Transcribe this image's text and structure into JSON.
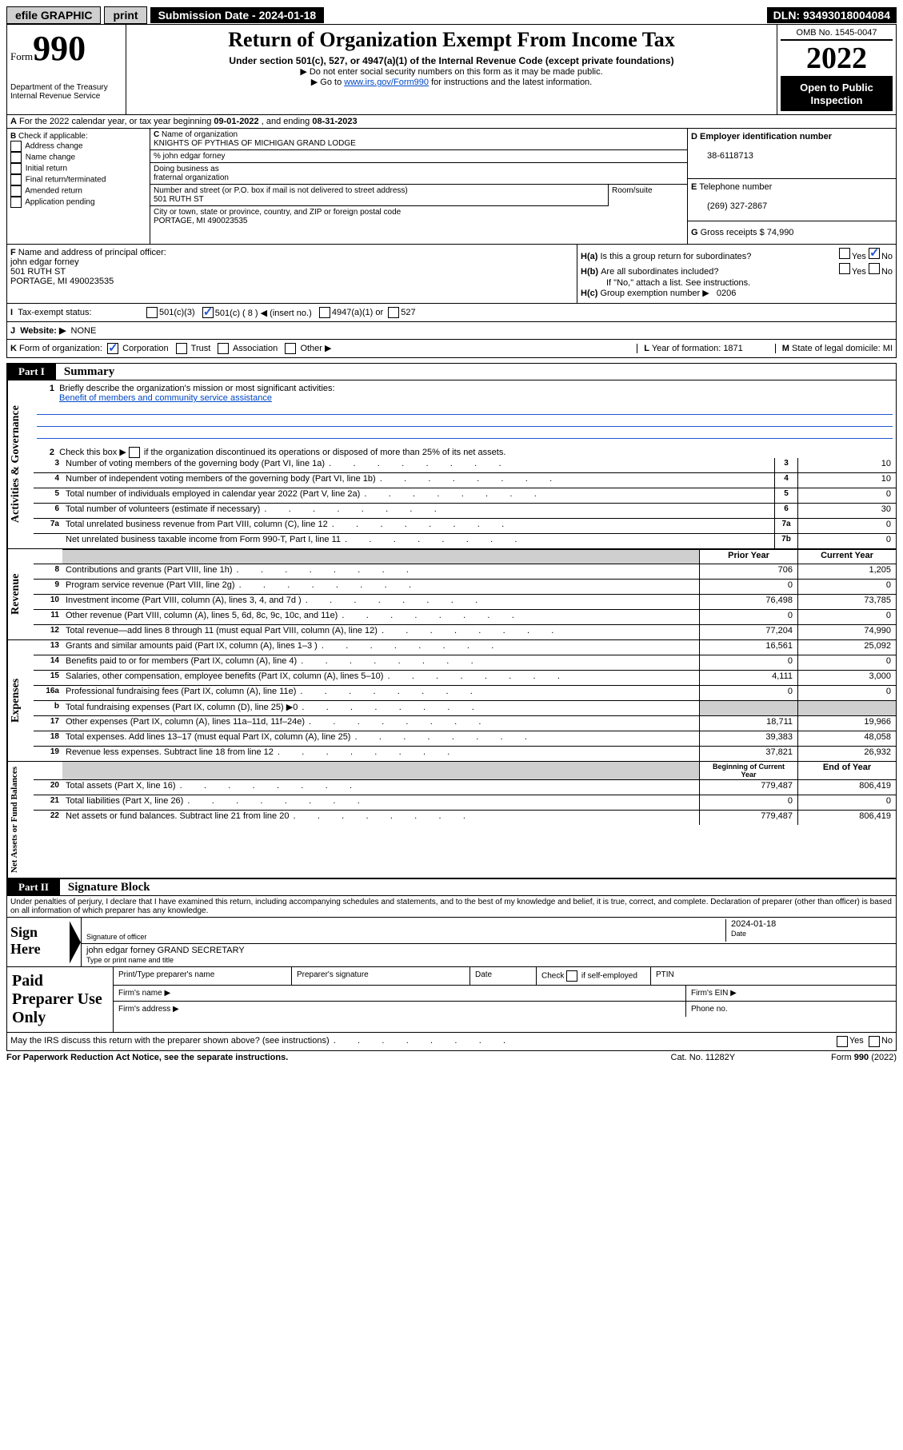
{
  "topbar": {
    "efile": "efile GRAPHIC",
    "print": "print",
    "submission": "Submission Date - 2024-01-18",
    "dln": "DLN: 93493018004084"
  },
  "header": {
    "form_label": "Form",
    "form_num": "990",
    "dept1": "Department of the Treasury",
    "dept2": "Internal Revenue Service",
    "title": "Return of Organization Exempt From Income Tax",
    "subtitle": "Under section 501(c), 527, or 4947(a)(1) of the Internal Revenue Code (except private foundations)",
    "note1": "▶ Do not enter social security numbers on this form as it may be made public.",
    "note2_pre": "▶ Go to ",
    "note2_link": "www.irs.gov/Form990",
    "note2_post": " for instructions and the latest information.",
    "omb": "OMB No. 1545-0047",
    "year": "2022",
    "inspect1": "Open to Public",
    "inspect2": "Inspection"
  },
  "A": {
    "text_pre": "For the 2022 calendar year, or tax year beginning ",
    "begin": "09-01-2022",
    "mid": " , and ending ",
    "end": "08-31-2023"
  },
  "B": {
    "label": "Check if applicable:",
    "opts": [
      "Address change",
      "Name change",
      "Initial return",
      "Final return/terminated",
      "Amended return",
      "Application pending"
    ]
  },
  "C": {
    "name_lbl": "Name of organization",
    "name": "KNIGHTS OF PYTHIAS OF MICHIGAN GRAND LODGE",
    "care": "% john edgar forney",
    "dba_lbl": "Doing business as",
    "dba": "fraternal organization",
    "street_lbl": "Number and street (or P.O. box if mail is not delivered to street address)",
    "street": "501 RUTH ST",
    "room_lbl": "Room/suite",
    "city_lbl": "City or town, state or province, country, and ZIP or foreign postal code",
    "city": "PORTAGE, MI  490023535"
  },
  "D": {
    "lbl": "Employer identification number",
    "val": "38-6118713"
  },
  "E": {
    "lbl": "Telephone number",
    "val": "(269) 327-2867"
  },
  "G": {
    "lbl": "Gross receipts $",
    "val": "74,990"
  },
  "F": {
    "lbl": "Name and address of principal officer:",
    "name": "john edgar forney",
    "street": "501 RUTH ST",
    "city": "PORTAGE, MI  490023535"
  },
  "H": {
    "a": "Is this a group return for subordinates?",
    "b": "Are all subordinates included?",
    "b_note": "If \"No,\" attach a list. See instructions.",
    "c": "Group exemption number ▶",
    "c_val": "0206",
    "yes": "Yes",
    "no": "No"
  },
  "I": {
    "lbl": "Tax-exempt status:",
    "o1": "501(c)(3)",
    "o2": "501(c) ( 8 ) ◀ (insert no.)",
    "o3": "4947(a)(1) or",
    "o4": "527"
  },
  "J": {
    "lbl": "Website: ▶",
    "val": "NONE"
  },
  "K": {
    "lbl": "Form of organization:",
    "o1": "Corporation",
    "o2": "Trust",
    "o3": "Association",
    "o4": "Other ▶"
  },
  "L": {
    "lbl": "Year of formation:",
    "val": "1871"
  },
  "M": {
    "lbl": "State of legal domicile:",
    "val": "MI"
  },
  "part1": {
    "tag": "Part I",
    "title": "Summary"
  },
  "summary": {
    "l1_lbl": "Briefly describe the organization's mission or most significant activities:",
    "l1_val": "Benefit of members and community service assistance",
    "l2": "Check this box ▶        if the organization discontinued its operations or disposed of more than 25% of its net assets.",
    "rows_ag": [
      {
        "n": "3",
        "d": "Number of voting members of the governing body (Part VI, line 1a)",
        "b": "3",
        "v": "10"
      },
      {
        "n": "4",
        "d": "Number of independent voting members of the governing body (Part VI, line 1b)",
        "b": "4",
        "v": "10"
      },
      {
        "n": "5",
        "d": "Total number of individuals employed in calendar year 2022 (Part V, line 2a)",
        "b": "5",
        "v": "0"
      },
      {
        "n": "6",
        "d": "Total number of volunteers (estimate if necessary)",
        "b": "6",
        "v": "30"
      },
      {
        "n": "7a",
        "d": "Total unrelated business revenue from Part VIII, column (C), line 12",
        "b": "7a",
        "v": "0"
      },
      {
        "n": "",
        "d": "Net unrelated business taxable income from Form 990-T, Part I, line 11",
        "b": "7b",
        "v": "0"
      }
    ],
    "hdr_prior": "Prior Year",
    "hdr_curr": "Current Year",
    "rev": [
      {
        "n": "8",
        "d": "Contributions and grants (Part VIII, line 1h)",
        "p": "706",
        "c": "1,205"
      },
      {
        "n": "9",
        "d": "Program service revenue (Part VIII, line 2g)",
        "p": "0",
        "c": "0"
      },
      {
        "n": "10",
        "d": "Investment income (Part VIII, column (A), lines 3, 4, and 7d )",
        "p": "76,498",
        "c": "73,785"
      },
      {
        "n": "11",
        "d": "Other revenue (Part VIII, column (A), lines 5, 6d, 8c, 9c, 10c, and 11e)",
        "p": "0",
        "c": "0"
      },
      {
        "n": "12",
        "d": "Total revenue—add lines 8 through 11 (must equal Part VIII, column (A), line 12)",
        "p": "77,204",
        "c": "74,990"
      }
    ],
    "exp": [
      {
        "n": "13",
        "d": "Grants and similar amounts paid (Part IX, column (A), lines 1–3 )",
        "p": "16,561",
        "c": "25,092"
      },
      {
        "n": "14",
        "d": "Benefits paid to or for members (Part IX, column (A), line 4)",
        "p": "0",
        "c": "0"
      },
      {
        "n": "15",
        "d": "Salaries, other compensation, employee benefits (Part IX, column (A), lines 5–10)",
        "p": "4,111",
        "c": "3,000"
      },
      {
        "n": "16a",
        "d": "Professional fundraising fees (Part IX, column (A), line 11e)",
        "p": "0",
        "c": "0"
      },
      {
        "n": "b",
        "d": "Total fundraising expenses (Part IX, column (D), line 25) ▶0",
        "p": "",
        "c": "",
        "grey": true
      },
      {
        "n": "17",
        "d": "Other expenses (Part IX, column (A), lines 11a–11d, 11f–24e)",
        "p": "18,711",
        "c": "19,966"
      },
      {
        "n": "18",
        "d": "Total expenses. Add lines 13–17 (must equal Part IX, column (A), line 25)",
        "p": "39,383",
        "c": "48,058"
      },
      {
        "n": "19",
        "d": "Revenue less expenses. Subtract line 18 from line 12",
        "p": "37,821",
        "c": "26,932"
      }
    ],
    "hdr_begin": "Beginning of Current Year",
    "hdr_end": "End of Year",
    "na": [
      {
        "n": "20",
        "d": "Total assets (Part X, line 16)",
        "p": "779,487",
        "c": "806,419"
      },
      {
        "n": "21",
        "d": "Total liabilities (Part X, line 26)",
        "p": "0",
        "c": "0"
      },
      {
        "n": "22",
        "d": "Net assets or fund balances. Subtract line 21 from line 20",
        "p": "779,487",
        "c": "806,419"
      }
    ],
    "side_ag": "Activities & Governance",
    "side_rev": "Revenue",
    "side_exp": "Expenses",
    "side_na": "Net Assets or Fund Balances"
  },
  "part2": {
    "tag": "Part II",
    "title": "Signature Block"
  },
  "decl": "Under penalties of perjury, I declare that I have examined this return, including accompanying schedules and statements, and to the best of my knowledge and belief, it is true, correct, and complete. Declaration of preparer (other than officer) is based on all information of which preparer has any knowledge.",
  "sign": {
    "here": "Sign Here",
    "sig_lbl": "Signature of officer",
    "date_lbl": "Date",
    "date": "2024-01-18",
    "name": "john edgar forney GRAND SECRETARY",
    "name_lbl": "Type or print name and title"
  },
  "paid": {
    "title": "Paid Preparer Use Only",
    "r1": [
      "Print/Type preparer's name",
      "Preparer's signature",
      "Date",
      "Check       if self-employed",
      "PTIN"
    ],
    "r2a": "Firm's name   ▶",
    "r2b": "Firm's EIN ▶",
    "r3a": "Firm's address ▶",
    "r3b": "Phone no."
  },
  "discuss": {
    "q": "May the IRS discuss this return with the preparer shown above? (see instructions)",
    "yes": "Yes",
    "no": "No"
  },
  "footer": {
    "l": "For Paperwork Reduction Act Notice, see the separate instructions.",
    "m": "Cat. No. 11282Y",
    "r": "Form 990 (2022)"
  }
}
